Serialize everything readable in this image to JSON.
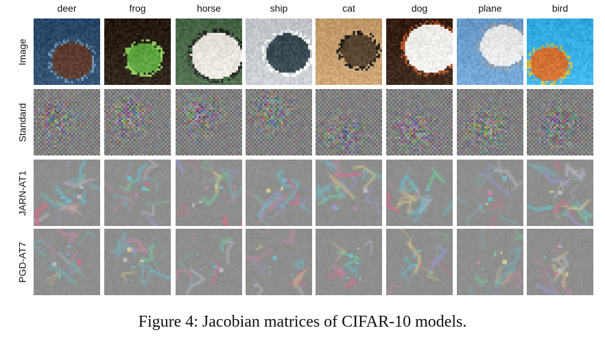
{
  "figure": {
    "columns": [
      "deer",
      "frog",
      "horse",
      "ship",
      "cat",
      "dog",
      "plane",
      "bird"
    ],
    "rows": [
      "Image",
      "Standard",
      "JARN-AT1",
      "PGD-AT7"
    ],
    "caption": "Figure 4: Jacobian matrices of CIFAR-10 models."
  },
  "cells": {
    "Image": [
      {
        "name": "deer",
        "bg": "#2f4e6e",
        "fg": "#5a3a2c",
        "accent": "#6c8fb0"
      },
      {
        "name": "frog",
        "bg": "#2a2018",
        "fg": "#5aa23c",
        "accent": "#8cc65a"
      },
      {
        "name": "horse",
        "bg": "#4a6a4a",
        "fg": "#e8e4dc",
        "accent": "#2a2a2a"
      },
      {
        "name": "ship",
        "bg": "#c8ccd0",
        "fg": "#3a4a52",
        "accent": "#ffffff"
      },
      {
        "name": "cat",
        "bg": "#c8a070",
        "fg": "#5a4630",
        "accent": "#222222"
      },
      {
        "name": "dog",
        "bg": "#3a2418",
        "fg": "#f2f0ec",
        "accent": "#b0552a"
      },
      {
        "name": "plane",
        "bg": "#6ea0d0",
        "fg": "#e8eaec",
        "accent": "#9aa0a8"
      },
      {
        "name": "bird",
        "bg": "#3ab0e8",
        "fg": "#d07030",
        "accent": "#c8b840"
      }
    ]
  }
}
